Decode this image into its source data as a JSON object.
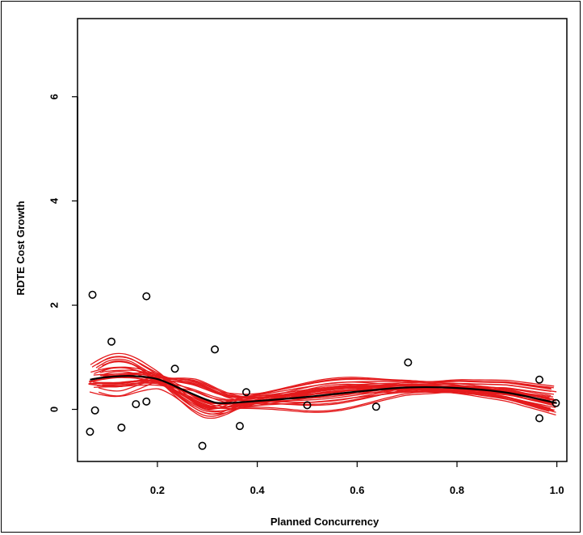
{
  "chart_data": {
    "type": "scatter",
    "title": "",
    "xlabel": "Planned Concurrency",
    "ylabel": "RDTE Cost Growth",
    "xlim": [
      0.04,
      1.02
    ],
    "ylim": [
      -1.0,
      7.5
    ],
    "xticks": [
      0.2,
      0.4,
      0.6,
      0.8,
      1.0
    ],
    "xtick_labels": [
      "0.2",
      "0.4",
      "0.6",
      "0.8",
      "1.0"
    ],
    "yticks": [
      0,
      2,
      4,
      6
    ],
    "ytick_labels": [
      "0",
      "2",
      "4",
      "6"
    ],
    "grid": false,
    "legend": "none",
    "colors": {
      "points": "#000000",
      "bootstrap_curves": "#e41a1c",
      "fit_curve": "#000000"
    },
    "points": [
      {
        "x": 0.07,
        "y": 2.2
      },
      {
        "x": 0.178,
        "y": 2.17
      },
      {
        "x": 0.315,
        "y": 1.15
      },
      {
        "x": 0.108,
        "y": 1.3
      },
      {
        "x": 0.065,
        "y": -0.43
      },
      {
        "x": 0.075,
        "y": -0.02
      },
      {
        "x": 0.128,
        "y": -0.35
      },
      {
        "x": 0.157,
        "y": 0.1
      },
      {
        "x": 0.178,
        "y": 0.15
      },
      {
        "x": 0.235,
        "y": 0.78
      },
      {
        "x": 0.29,
        "y": -0.7
      },
      {
        "x": 0.365,
        "y": -0.32
      },
      {
        "x": 0.378,
        "y": 0.33
      },
      {
        "x": 0.5,
        "y": 0.08
      },
      {
        "x": 0.638,
        "y": 0.05
      },
      {
        "x": 0.702,
        "y": 0.9
      },
      {
        "x": 0.965,
        "y": 0.57
      },
      {
        "x": 0.965,
        "y": -0.17
      },
      {
        "x": 0.998,
        "y": 0.12
      }
    ],
    "series": [
      {
        "role": "fit",
        "x": [
          0.065,
          0.1,
          0.15,
          0.2,
          0.25,
          0.3,
          0.33,
          0.4,
          0.5,
          0.6,
          0.7,
          0.8,
          0.9,
          1.0
        ],
        "y": [
          0.57,
          0.62,
          0.64,
          0.58,
          0.38,
          0.18,
          0.12,
          0.16,
          0.24,
          0.34,
          0.42,
          0.41,
          0.32,
          0.12
        ]
      }
    ]
  }
}
